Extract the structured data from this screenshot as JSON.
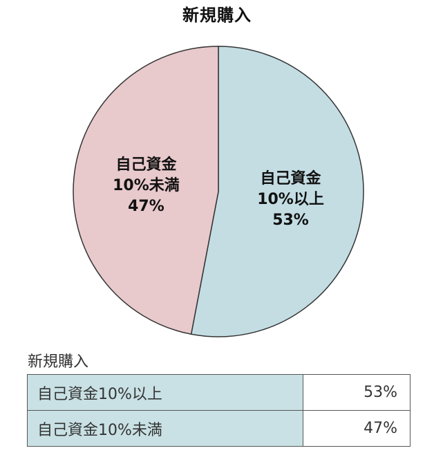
{
  "chart_data": {
    "type": "pie",
    "title": "新規購入",
    "slices": [
      {
        "label": "自己資金\n10%以上",
        "value": 53,
        "display": "53%",
        "color": "#c3dde3"
      },
      {
        "label": "自己資金\n10%未満",
        "value": 47,
        "display": "47%",
        "color": "#e8c9cc"
      }
    ]
  },
  "table": {
    "title": "新規購入",
    "rows": [
      {
        "label": "自己資金10%以上",
        "value": "53%"
      },
      {
        "label": "自己資金10%未満",
        "value": "47%"
      }
    ]
  }
}
